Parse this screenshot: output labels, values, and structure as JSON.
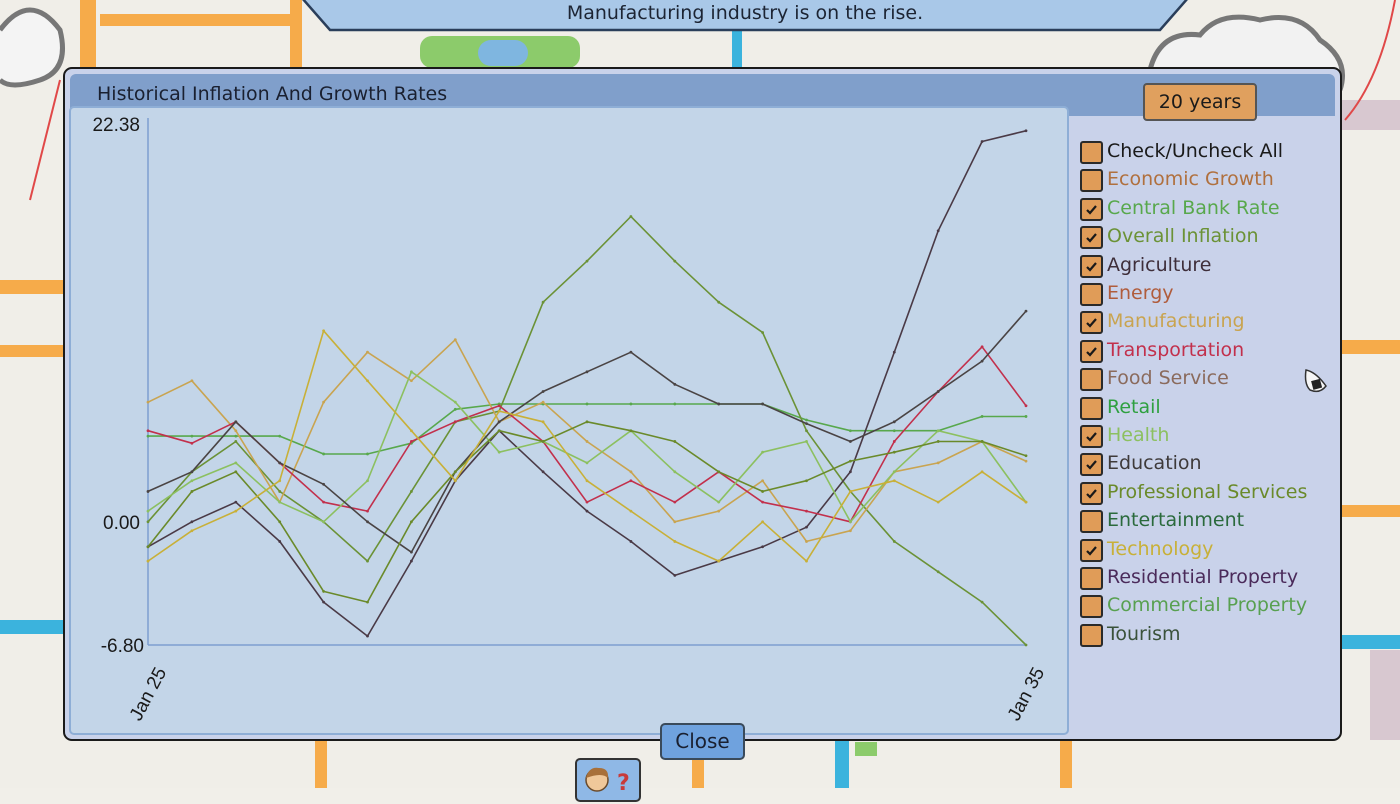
{
  "banner": {
    "message": "Manufacturing industry is on the rise."
  },
  "dialog": {
    "title": "Historical Inflation And Growth Rates",
    "range_button": "20 years",
    "close_button": "Close"
  },
  "legend": [
    {
      "label": "Check/Uncheck All",
      "checked": false,
      "color": "#1a1a1a"
    },
    {
      "label": "Economic Growth",
      "checked": false,
      "color": "#b0703e"
    },
    {
      "label": "Central Bank Rate",
      "checked": true,
      "color": "#58a84c"
    },
    {
      "label": "Overall Inflation",
      "checked": true,
      "color": "#6b9236"
    },
    {
      "label": "Agriculture",
      "checked": true,
      "color": "#3e2e3a"
    },
    {
      "label": "Energy",
      "checked": false,
      "color": "#b05c3c"
    },
    {
      "label": "Manufacturing",
      "checked": true,
      "color": "#c9a450"
    },
    {
      "label": "Transportation",
      "checked": true,
      "color": "#c2304c"
    },
    {
      "label": "Food Service",
      "checked": false,
      "color": "#8a6a5c"
    },
    {
      "label": "Retail",
      "checked": false,
      "color": "#2ea040"
    },
    {
      "label": "Health",
      "checked": true,
      "color": "#8cc060"
    },
    {
      "label": "Education",
      "checked": true,
      "color": "#3e3a3a"
    },
    {
      "label": "Professional Services",
      "checked": true,
      "color": "#6a8a2a"
    },
    {
      "label": "Entertainment",
      "checked": false,
      "color": "#2a6a3c"
    },
    {
      "label": "Technology",
      "checked": true,
      "color": "#c8b038"
    },
    {
      "label": "Residential Property",
      "checked": false,
      "color": "#4a2a5a"
    },
    {
      "label": "Commercial Property",
      "checked": false,
      "color": "#58a050"
    },
    {
      "label": "Tourism",
      "checked": false,
      "color": "#3a523a"
    }
  ],
  "chart_data": {
    "type": "line",
    "title": "Historical Inflation And Growth Rates",
    "x_tick_labels": [
      "Jan 25",
      "Jan 35"
    ],
    "y_tick_labels": [
      "22.38",
      "0.00",
      "-6.80"
    ],
    "ylim": [
      -6.8,
      22.38
    ],
    "grid": false,
    "legend": "right",
    "x": [
      "Jan 25",
      "Jul 25",
      "Jan 26",
      "Jul 26",
      "Jan 27",
      "Jul 27",
      "Jan 28",
      "Jul 28",
      "Jan 29",
      "Jul 29",
      "Jan 30",
      "Jul 30",
      "Jan 31",
      "Jul 31",
      "Jan 32",
      "Jul 32",
      "Jan 33",
      "Jul 33",
      "Jan 34",
      "Jul 34",
      "Jan 35"
    ],
    "series": [
      {
        "name": "Central Bank Rate",
        "color": "#58a84c",
        "values": [
          4.9,
          4.9,
          4.9,
          4.9,
          3.9,
          3.9,
          4.5,
          6.4,
          6.7,
          6.7,
          6.7,
          6.7,
          6.7,
          6.7,
          6.7,
          5.8,
          5.2,
          5.2,
          5.2,
          6.0,
          6.0
        ]
      },
      {
        "name": "Overall Inflation",
        "color": "#6b9236",
        "values": [
          0.1,
          2.9,
          4.6,
          1.8,
          0.1,
          -2.1,
          1.8,
          5.7,
          6.3,
          12.4,
          14.7,
          17.2,
          14.7,
          12.4,
          10.7,
          5.2,
          1.8,
          -1.0,
          -2.7,
          -4.4,
          -6.8
        ]
      },
      {
        "name": "Agriculture",
        "color": "#4a3a46",
        "values": [
          -1.3,
          0.1,
          1.2,
          -1.0,
          -4.4,
          -6.3,
          -2.1,
          2.4,
          5.2,
          2.9,
          0.7,
          -1.0,
          -2.9,
          -2.1,
          -1.3,
          -0.2,
          2.9,
          9.6,
          16.4,
          21.4,
          22.0
        ]
      },
      {
        "name": "Manufacturing",
        "color": "#c9a450",
        "values": [
          6.8,
          8.0,
          5.2,
          1.2,
          6.8,
          9.6,
          8.0,
          10.3,
          5.7,
          6.8,
          4.6,
          2.9,
          0.1,
          0.7,
          2.4,
          -1.0,
          -0.4,
          2.9,
          3.4,
          4.6,
          3.5
        ]
      },
      {
        "name": "Transportation",
        "color": "#c2304c",
        "values": [
          5.2,
          4.5,
          5.7,
          3.4,
          1.2,
          0.7,
          4.6,
          5.7,
          6.6,
          4.6,
          1.2,
          2.4,
          1.2,
          2.9,
          1.2,
          0.7,
          0.1,
          4.6,
          7.4,
          9.9,
          6.6
        ]
      },
      {
        "name": "Health",
        "color": "#8cc060",
        "values": [
          0.7,
          2.4,
          3.4,
          1.2,
          0.1,
          2.4,
          8.5,
          6.8,
          4.0,
          4.6,
          3.4,
          5.2,
          2.9,
          1.2,
          4.0,
          4.6,
          0.1,
          2.9,
          5.2,
          4.6,
          1.2
        ]
      },
      {
        "name": "Education",
        "color": "#4a4444",
        "values": [
          1.8,
          2.9,
          5.7,
          3.4,
          2.2,
          0.1,
          -1.6,
          2.9,
          5.7,
          7.4,
          8.5,
          9.6,
          7.8,
          6.7,
          6.7,
          5.6,
          4.6,
          5.7,
          7.4,
          9.1,
          11.9
        ]
      },
      {
        "name": "Professional Services",
        "color": "#6a8a2a",
        "values": [
          -1.3,
          1.8,
          2.9,
          0.1,
          -3.8,
          -4.4,
          0.1,
          2.9,
          5.2,
          4.6,
          5.7,
          5.2,
          4.6,
          2.9,
          1.8,
          2.4,
          3.5,
          4.0,
          4.6,
          4.6,
          3.8
        ]
      },
      {
        "name": "Technology",
        "color": "#c8b038",
        "values": [
          -2.1,
          -0.4,
          0.7,
          2.4,
          10.8,
          8.0,
          5.2,
          2.4,
          6.3,
          5.7,
          2.4,
          0.7,
          -1.0,
          -2.1,
          0.1,
          -2.1,
          1.8,
          2.4,
          1.2,
          2.9,
          1.2
        ]
      }
    ]
  }
}
